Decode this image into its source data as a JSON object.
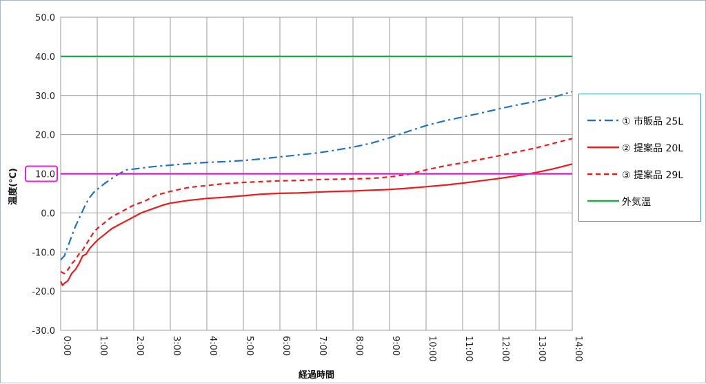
{
  "chart_data": {
    "type": "line",
    "xlabel": "経過時間",
    "ylabel": "温度(℃)",
    "xlim": [
      0,
      14
    ],
    "ylim": [
      -30,
      50
    ],
    "x_unit": "hours",
    "x_ticks": [
      0,
      1,
      2,
      3,
      4,
      5,
      6,
      7,
      8,
      9,
      10,
      11,
      12,
      13,
      14
    ],
    "x_tick_labels": [
      "0:00",
      "1:00",
      "2:00",
      "3:00",
      "4:00",
      "5:00",
      "6:00",
      "7:00",
      "8:00",
      "9:00",
      "10:00",
      "11:00",
      "12:00",
      "13:00",
      "14:00"
    ],
    "y_ticks": [
      -30,
      -20,
      -10,
      0,
      10,
      20,
      30,
      40,
      50
    ],
    "y_tick_labels": [
      "-30.0",
      "-20.0",
      "-10.0",
      "0.0",
      "10.0",
      "20.0",
      "30.0",
      "40.0",
      "50.0"
    ],
    "grid": true,
    "legend_position": "right",
    "reference_line": {
      "y": 10,
      "label": "10.0",
      "color": "#e81ee0"
    },
    "series": [
      {
        "name": "① 市販品 25L",
        "color": "#1f72c4",
        "dash": "dashdot",
        "x": [
          0,
          0.1,
          0.2,
          0.3,
          0.4,
          0.5,
          0.6,
          0.7,
          0.8,
          0.9,
          1.0,
          1.2,
          1.4,
          1.6,
          1.8,
          2.0,
          2.5,
          3.0,
          3.5,
          4.0,
          4.5,
          5.0,
          5.5,
          6.0,
          6.5,
          7.0,
          7.5,
          8.0,
          8.5,
          9.0,
          9.5,
          10.0,
          10.5,
          11.0,
          11.5,
          12.0,
          12.5,
          13.0,
          13.5,
          14.0
        ],
        "values": [
          -12,
          -11,
          -8.5,
          -6,
          -3.5,
          -1.5,
          0.5,
          2.5,
          4,
          5.2,
          6,
          7.5,
          8.8,
          10,
          11,
          11.2,
          11.8,
          12.2,
          12.6,
          12.9,
          13.1,
          13.4,
          13.8,
          14.3,
          14.8,
          15.3,
          16,
          16.8,
          17.8,
          19.2,
          20.8,
          22.3,
          23.5,
          24.5,
          25.5,
          26.6,
          27.6,
          28.5,
          29.6,
          31
        ]
      },
      {
        "name": "② 提案品 20L",
        "color": "#ee1b1b",
        "dash": "solid",
        "x": [
          0,
          0.05,
          0.1,
          0.2,
          0.3,
          0.4,
          0.5,
          0.6,
          0.7,
          0.8,
          0.9,
          1.0,
          1.2,
          1.4,
          1.6,
          1.8,
          2.0,
          2.2,
          2.5,
          2.8,
          3.0,
          3.5,
          4.0,
          4.5,
          5.0,
          5.5,
          6.0,
          6.5,
          7.0,
          7.5,
          8.0,
          8.5,
          9.0,
          9.5,
          10.0,
          10.5,
          11.0,
          11.5,
          12.0,
          12.5,
          13.0,
          13.5,
          14.0
        ],
        "values": [
          -17.5,
          -18.5,
          -18,
          -17.3,
          -15.5,
          -14.5,
          -13,
          -11,
          -10.5,
          -9,
          -8,
          -7,
          -5.5,
          -4,
          -3,
          -2,
          -1,
          0,
          1,
          2,
          2.5,
          3.2,
          3.7,
          4,
          4.4,
          4.8,
          5,
          5.1,
          5.3,
          5.5,
          5.6,
          5.8,
          6,
          6.3,
          6.7,
          7.1,
          7.6,
          8.2,
          8.8,
          9.5,
          10.3,
          11.3,
          12.5
        ]
      },
      {
        "name": "③ 提案品 29L",
        "color": "#ee1b1b",
        "dash": "dash",
        "x": [
          0,
          0.1,
          0.2,
          0.3,
          0.4,
          0.5,
          0.6,
          0.7,
          0.8,
          0.9,
          1.0,
          1.2,
          1.4,
          1.6,
          1.8,
          2.0,
          2.3,
          2.6,
          3.0,
          3.5,
          4.0,
          4.5,
          5.0,
          5.5,
          6.0,
          6.5,
          7.0,
          7.5,
          8.0,
          8.5,
          9.0,
          9.5,
          10.0,
          10.5,
          11.0,
          11.5,
          12.0,
          12.5,
          13.0,
          13.5,
          14.0
        ],
        "values": [
          -15,
          -15.5,
          -14.5,
          -13,
          -12,
          -10.5,
          -9.5,
          -8,
          -6.5,
          -5,
          -4,
          -2.5,
          -1,
          0,
          1,
          2,
          3,
          4.5,
          5.5,
          6.5,
          7,
          7.5,
          7.8,
          8,
          8.2,
          8.3,
          8.5,
          8.6,
          8.7,
          8.8,
          9.2,
          9.8,
          11,
          12,
          12.8,
          13.7,
          14.6,
          15.6,
          16.6,
          17.8,
          19
        ]
      },
      {
        "name": "外気温",
        "color": "#1faa4a",
        "dash": "solid",
        "x": [
          0,
          14
        ],
        "values": [
          40,
          40
        ]
      }
    ]
  }
}
